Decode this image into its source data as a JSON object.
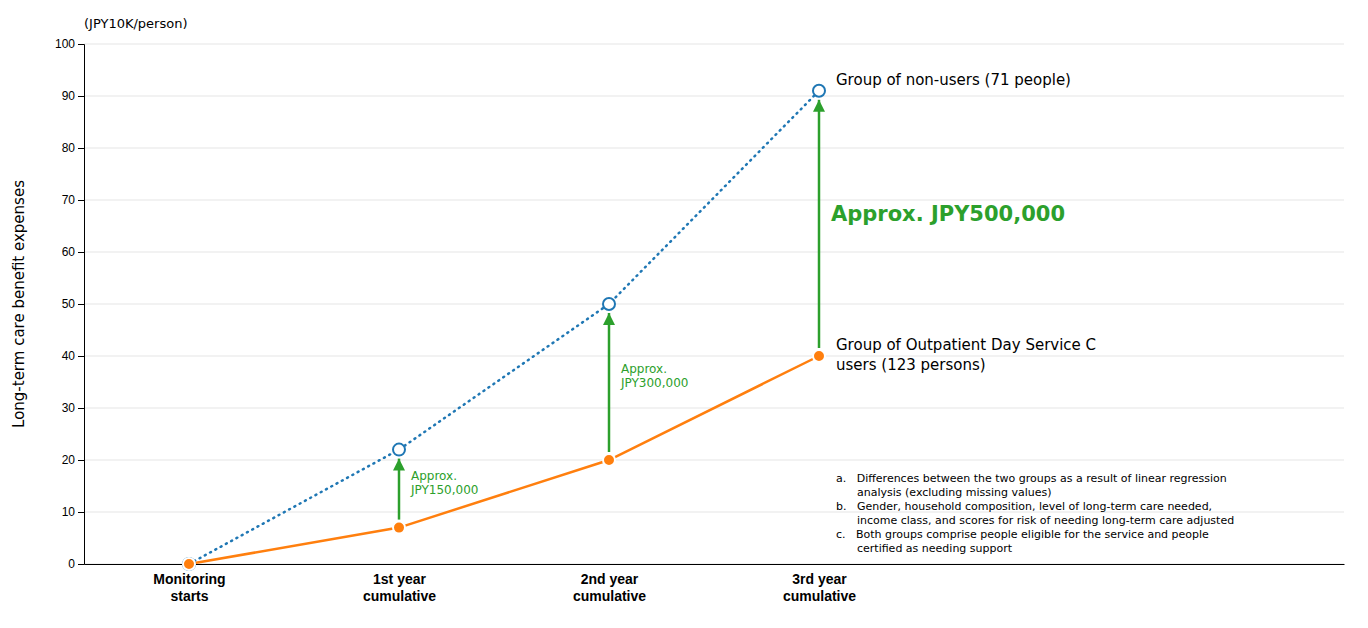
{
  "chart_data": {
    "type": "line",
    "categories": [
      "Monitoring\nstarts",
      "1st year\ncumulative",
      "2nd year\ncumulative",
      "3rd year\ncumulative"
    ],
    "series": [
      {
        "name": "Group of non-users (71 people)",
        "values": [
          0,
          22,
          50,
          91
        ],
        "line_style": "dotted",
        "marker": "open-circle"
      },
      {
        "name": "Group of Outpatient Day Service C\nusers (123 persons)",
        "values": [
          0,
          7,
          20,
          40
        ],
        "line_style": "solid",
        "marker": "circle"
      }
    ],
    "ylabel": "Long-term care benefit expenses",
    "subtitle": "(JPY10K/person)",
    "ylim": [
      0,
      100
    ],
    "yticks": [
      0,
      10,
      20,
      30,
      40,
      50,
      60,
      70,
      80,
      90,
      100
    ],
    "grid": true,
    "annotations": [
      {
        "text": "Approx.\nJPY150,000",
        "category": "1st year\ncumulative"
      },
      {
        "text": "Approx.\nJPY300,000",
        "category": "2nd year\ncumulative"
      },
      {
        "text": "Approx. JPY500,000",
        "category": "3rd year\ncumulative"
      },
      {
        "text": "a.   Differences between the two groups as a result of linear regression\n      analysis (excluding missing values)"
      },
      {
        "text": "b.   Gender, household composition, level of long-term care needed,\n      income class, and scores for risk of needing long-term care adjusted"
      },
      {
        "text": "c.   Both groups comprise people eligible for the service and people\n      certified as needing support"
      }
    ]
  }
}
